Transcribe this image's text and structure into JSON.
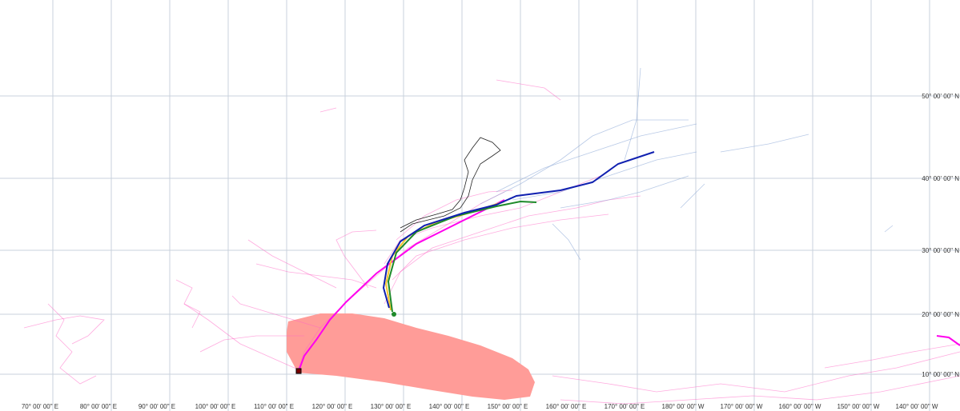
{
  "map": {
    "longitude_labels": [
      "70° 00' 00\" E",
      "80° 00' 00\" E",
      "90° 00' 00\" E",
      "100° 00' 00\" E",
      "110° 00' 00\" E",
      "120° 00' 00\" E",
      "130° 00' 00\" E",
      "140° 00' 00\" E",
      "150° 00' 00\" E",
      "160° 00' 00\" E",
      "170° 00' 00\" E",
      "180° 00' 00\" W",
      "170° 00' 00\" W",
      "160° 00' 00\" W",
      "150° 00' 00\" W",
      "140° 00' 00\" W"
    ],
    "latitude_labels": [
      "50° 00' 00\" N",
      "40° 00' 00\" N",
      "30° 00' 00\" N",
      "20° 00' 00\" N",
      "10° 00' 00\" N"
    ]
  }
}
